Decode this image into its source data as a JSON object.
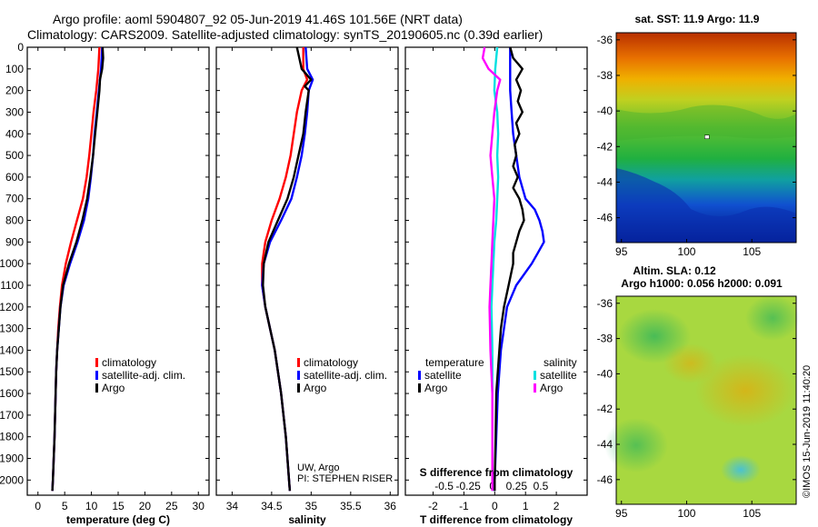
{
  "title": {
    "line1": "Argo profile: aoml 5904807_92 05-Jun-2019 41.46S 101.56E (NRT data)",
    "line2": "Climatology: CARS2009. Satellite-adjusted climatology: synTS_20190605.nc (0.39d earlier)"
  },
  "colors": {
    "climatology": "#ff0000",
    "satellite": "#0000ff",
    "argo": "#000000",
    "salinity_sat": "#00e0e0",
    "salinity_argo": "#ff00ff"
  },
  "chart_data": [
    {
      "type": "line",
      "id": "temperature",
      "xlabel": "temperature (deg C)",
      "ylabel": "",
      "xlim": [
        -2,
        32
      ],
      "ylim": [
        2070,
        0
      ],
      "xticks": [
        0,
        5,
        10,
        15,
        20,
        25,
        30
      ],
      "xtick_labels": [
        "0",
        "5",
        "10",
        "15",
        "20",
        "25",
        "30"
      ],
      "yticks": [
        0,
        100,
        200,
        300,
        400,
        500,
        600,
        700,
        800,
        900,
        1000,
        1100,
        1200,
        1300,
        1400,
        1500,
        1600,
        1700,
        1800,
        1900,
        2000
      ],
      "ytick_labels": [
        "0",
        "100",
        "200",
        "300",
        "400",
        "500",
        "600",
        "700",
        "800",
        "900",
        "1000",
        "1100",
        "1200",
        "1300",
        "1400",
        "1500",
        "1600",
        "1700",
        "1800",
        "1900",
        "2000"
      ],
      "legend": [
        "climatology",
        "satellite-adj. clim.",
        "Argo"
      ],
      "series": [
        {
          "name": "climatology",
          "color": "#ff0000",
          "depth": [
            0,
            100,
            200,
            300,
            400,
            500,
            600,
            700,
            800,
            900,
            1000,
            1100,
            1200,
            1300,
            1400,
            1500,
            1600,
            1800,
            2000,
            2050
          ],
          "values": [
            11.5,
            11.3,
            10.9,
            10.4,
            10.0,
            9.6,
            9.1,
            8.4,
            7.3,
            6.2,
            5.2,
            4.5,
            4.1,
            3.8,
            3.6,
            3.4,
            3.3,
            3.1,
            2.8,
            2.7
          ]
        },
        {
          "name": "satellite-adj. clim.",
          "color": "#0000ff",
          "depth": [
            0,
            100,
            200,
            300,
            400,
            500,
            600,
            700,
            800,
            900,
            1000,
            1100,
            1200,
            1300,
            1400,
            1500,
            1600,
            1800,
            2000,
            2050
          ],
          "values": [
            12.0,
            11.8,
            11.4,
            11.0,
            10.6,
            10.3,
            9.9,
            9.4,
            8.6,
            7.4,
            6.0,
            4.8,
            4.2,
            3.9,
            3.6,
            3.4,
            3.3,
            3.1,
            2.8,
            2.7
          ]
        },
        {
          "name": "Argo",
          "color": "#000000",
          "depth": [
            0,
            50,
            100,
            150,
            200,
            300,
            400,
            500,
            600,
            700,
            800,
            900,
            1000,
            1100,
            1200,
            1300,
            1400,
            1500,
            1600,
            1800,
            2000,
            2050
          ],
          "values": [
            12.1,
            12.2,
            12.0,
            11.6,
            11.5,
            11.1,
            10.7,
            10.3,
            9.8,
            9.2,
            8.3,
            7.2,
            5.8,
            4.7,
            4.2,
            3.9,
            3.6,
            3.4,
            3.3,
            3.1,
            2.8,
            2.7
          ]
        }
      ],
      "annotations": []
    },
    {
      "type": "line",
      "id": "salinity",
      "xlabel": "salinity",
      "xlim": [
        33.8,
        36.1
      ],
      "ylim": [
        2070,
        0
      ],
      "xticks": [
        34,
        34.5,
        35,
        35.5,
        36
      ],
      "xtick_labels": [
        "34",
        "34.5",
        "35",
        "35.5",
        "36"
      ],
      "legend": [
        "climatology",
        "satellite-adj. clim.",
        "Argo"
      ],
      "series": [
        {
          "name": "climatology",
          "color": "#ff0000",
          "depth": [
            0,
            100,
            150,
            200,
            300,
            400,
            500,
            600,
            700,
            800,
            900,
            1000,
            1100,
            1200,
            1300,
            1400,
            1500,
            1600,
            1800,
            2000,
            2050
          ],
          "values": [
            34.9,
            34.9,
            34.95,
            34.88,
            34.82,
            34.78,
            34.74,
            34.68,
            34.6,
            34.5,
            34.42,
            34.38,
            34.38,
            34.42,
            34.48,
            34.54,
            34.58,
            34.62,
            34.68,
            34.72,
            34.73
          ]
        },
        {
          "name": "satellite-adj. clim.",
          "color": "#0000ff",
          "depth": [
            0,
            100,
            150,
            200,
            300,
            400,
            500,
            600,
            700,
            800,
            900,
            1000,
            1100,
            1200,
            1300,
            1400,
            1500,
            1600,
            1800,
            2000,
            2050
          ],
          "values": [
            34.93,
            34.95,
            35.02,
            34.97,
            34.95,
            34.92,
            34.88,
            34.82,
            34.75,
            34.62,
            34.48,
            34.4,
            34.38,
            34.42,
            34.48,
            34.54,
            34.58,
            34.62,
            34.68,
            34.72,
            34.73
          ]
        },
        {
          "name": "Argo",
          "color": "#000000",
          "depth": [
            0,
            50,
            100,
            150,
            180,
            200,
            300,
            400,
            500,
            600,
            700,
            800,
            900,
            1000,
            1100,
            1200,
            1300,
            1400,
            1500,
            1600,
            1800,
            2000,
            2050
          ],
          "values": [
            34.82,
            34.85,
            34.88,
            35.0,
            34.92,
            34.97,
            34.93,
            34.9,
            34.84,
            34.78,
            34.7,
            34.58,
            34.46,
            34.4,
            34.39,
            34.42,
            34.48,
            34.54,
            34.58,
            34.62,
            34.68,
            34.72,
            34.73
          ]
        }
      ],
      "annotations": [
        "UW, Argo",
        "PI: STEPHEN RISER"
      ]
    },
    {
      "type": "line",
      "id": "difference",
      "xlabel": "T difference from climatology",
      "xlabel2": "S difference from climatology",
      "xlim": [
        -2.9,
        3.0
      ],
      "ylim": [
        2070,
        0
      ],
      "xticks": [
        -2,
        -1,
        0,
        1,
        2
      ],
      "xtick_labels": [
        "-2",
        "-1",
        "0",
        "1",
        "2"
      ],
      "sticks": [
        -0.5,
        -0.25,
        0,
        0.25,
        0.5
      ],
      "stick_labels": [
        "-0.5",
        "-0.25",
        "0",
        "0.25",
        "0.5"
      ],
      "legend_temperature_title": "temperature",
      "legend_salinity_title": "salinity",
      "legend": [
        "satellite",
        "Argo",
        "satellite",
        "Argo"
      ],
      "series": [
        {
          "name": "T satellite",
          "color": "#0000ff",
          "depth": [
            0,
            100,
            200,
            300,
            400,
            500,
            600,
            700,
            750,
            800,
            850,
            900,
            950,
            1000,
            1100,
            1200,
            1400,
            1600,
            1800,
            2000,
            2050
          ],
          "values": [
            0.5,
            0.5,
            0.5,
            0.55,
            0.6,
            0.7,
            0.8,
            1.0,
            1.3,
            1.45,
            1.55,
            1.6,
            1.4,
            1.2,
            0.7,
            0.4,
            0.2,
            0.1,
            0.05,
            0.0,
            0.0
          ]
        },
        {
          "name": "T Argo",
          "color": "#000000",
          "depth": [
            0,
            50,
            100,
            150,
            200,
            250,
            300,
            350,
            400,
            450,
            500,
            550,
            600,
            650,
            700,
            750,
            800,
            850,
            900,
            950,
            1000,
            1100,
            1200,
            1300,
            1400,
            1500,
            1600,
            1800,
            2000,
            2050
          ],
          "values": [
            0.5,
            0.6,
            0.9,
            0.7,
            0.85,
            0.75,
            0.9,
            0.7,
            0.8,
            0.65,
            0.7,
            0.6,
            0.75,
            0.6,
            0.8,
            0.9,
            0.95,
            0.8,
            0.7,
            0.6,
            0.6,
            0.45,
            0.3,
            0.2,
            0.15,
            0.1,
            0.05,
            0.03,
            0.0,
            0.0
          ]
        },
        {
          "name": "S satellite",
          "color": "#00e0e0",
          "depth": [
            0,
            100,
            200,
            300,
            400,
            500,
            600,
            700,
            800,
            900,
            1000,
            1100,
            1200,
            1400,
            1600,
            1800,
            2000,
            2050
          ],
          "values": [
            0.05,
            0.03,
            0.02,
            0.05,
            0.06,
            0.05,
            0.06,
            0.05,
            0.04,
            0.02,
            0.01,
            0.0,
            -0.01,
            0.0,
            0.0,
            0.0,
            0.0,
            0.0
          ]
        },
        {
          "name": "S Argo",
          "color": "#ff00ff",
          "depth": [
            0,
            50,
            100,
            150,
            200,
            300,
            400,
            500,
            600,
            700,
            800,
            900,
            1000,
            1100,
            1200,
            1400,
            1600,
            1800,
            2000,
            2050
          ],
          "values": [
            -0.08,
            -0.1,
            -0.04,
            0.08,
            0.05,
            0.02,
            0.0,
            -0.02,
            0.0,
            0.02,
            0.01,
            0.0,
            -0.01,
            -0.02,
            -0.03,
            -0.02,
            0.0,
            0.0,
            0.0,
            0.0
          ]
        }
      ],
      "annotations": []
    },
    {
      "type": "heatmap",
      "id": "sst_map",
      "title": "sat. SST: 11.9 Argo: 11.9",
      "xticks": [
        95,
        100,
        105
      ],
      "xtick_labels": [
        "95",
        "100",
        "105"
      ],
      "yticks": [
        -36,
        -38,
        -40,
        -42,
        -44,
        -46
      ],
      "ytick_labels": [
        "-36",
        "-38",
        "-40",
        "-42",
        "-44",
        "-46"
      ],
      "xlim": [
        94.6,
        108.4
      ],
      "ylim": [
        -47.4,
        -35.6
      ],
      "argo_position": {
        "lon": 101.56,
        "lat": -41.46
      }
    },
    {
      "type": "heatmap",
      "id": "sla_map",
      "title": "Altim. SLA: 0.12",
      "title2": "Argo h1000: 0.056 h2000: 0.091",
      "xticks": [
        95,
        100,
        105
      ],
      "xtick_labels": [
        "95",
        "100",
        "105"
      ],
      "yticks": [
        -36,
        -38,
        -40,
        -42,
        -44,
        -46
      ],
      "ytick_labels": [
        "-36",
        "-38",
        "-40",
        "-42",
        "-44",
        "-46"
      ],
      "xlim": [
        94.6,
        108.4
      ],
      "ylim": [
        -47.4,
        -35.6
      ]
    }
  ],
  "credit": "©IMOS 15-Jun-2019 11:40:20"
}
